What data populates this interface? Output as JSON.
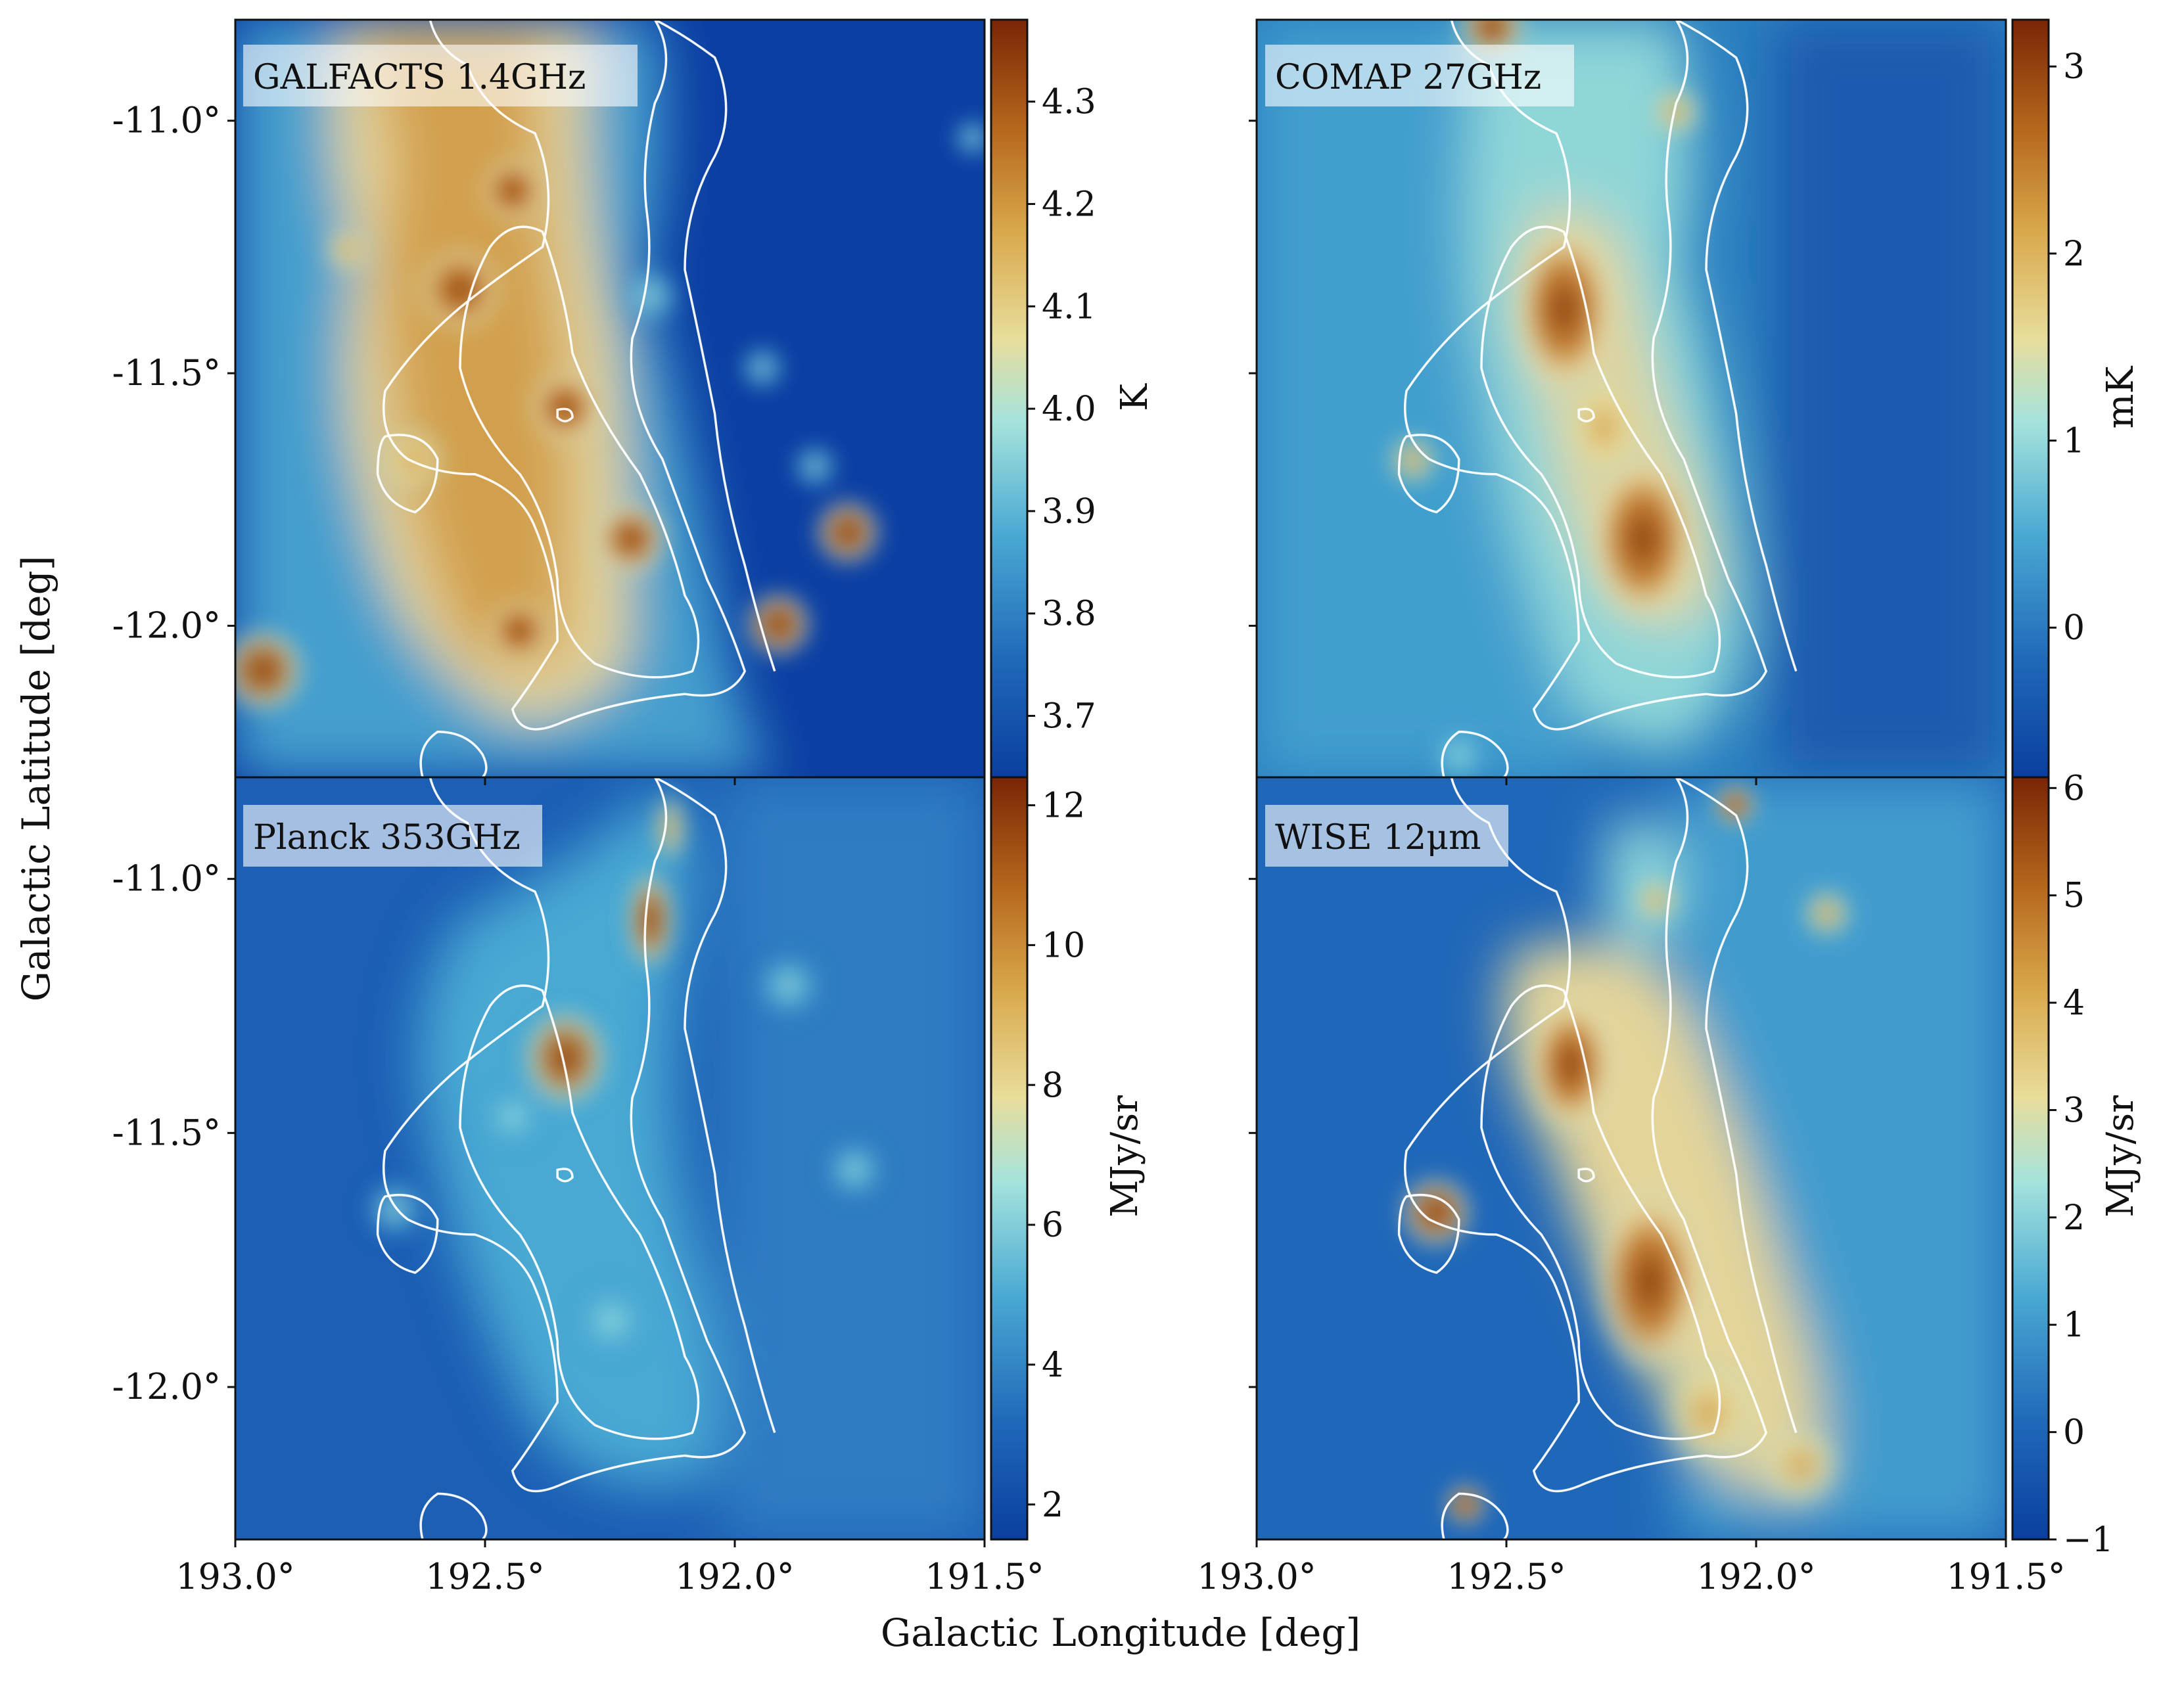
{
  "figure": {
    "xlabel": "Galactic Longitude  [deg]",
    "ylabel": "Galactic Latitude  [deg]"
  },
  "chart_data": [
    {
      "type": "heatmap",
      "title": "GALFACTS 1.4GHz",
      "colorbar_label": "K",
      "colorbar_range": [
        3.64,
        4.38
      ],
      "colorbar_ticks": [
        "3.7",
        "3.8",
        "3.9",
        "4.0",
        "4.1",
        "4.2",
        "4.3"
      ],
      "colorbar_tick_values": [
        3.7,
        3.8,
        3.9,
        4.0,
        4.1,
        4.2,
        4.3
      ],
      "x_ticks": [
        "193.0°",
        "192.5°",
        "192.0°",
        "191.5°"
      ],
      "y_ticks": [
        "-11.0°",
        "-11.5°",
        "-12.0°"
      ],
      "x_range": [
        193.0,
        191.5
      ],
      "y_range": [
        -12.3,
        -10.8
      ]
    },
    {
      "type": "heatmap",
      "title": "COMAP 27GHz",
      "colorbar_label": "mK",
      "colorbar_range": [
        -0.8,
        3.25
      ],
      "colorbar_ticks": [
        "0",
        "1",
        "2",
        "3"
      ],
      "colorbar_tick_values": [
        0,
        1,
        2,
        3
      ],
      "x_ticks": [
        "193.0°",
        "192.5°",
        "192.0°",
        "191.5°"
      ],
      "y_ticks": [],
      "x_range": [
        193.0,
        191.5
      ],
      "y_range": [
        -12.3,
        -10.8
      ]
    },
    {
      "type": "heatmap",
      "title": "Planck 353GHz",
      "colorbar_label": "MJy/sr",
      "colorbar_range": [
        1.5,
        12.4
      ],
      "colorbar_ticks": [
        "2",
        "4",
        "6",
        "8",
        "10",
        "12"
      ],
      "colorbar_tick_values": [
        2,
        4,
        6,
        8,
        10,
        12
      ],
      "x_ticks": [
        "193.0°",
        "192.5°",
        "192.0°",
        "191.5°"
      ],
      "y_ticks": [
        "-11.0°",
        "-11.5°",
        "-12.0°"
      ],
      "x_range": [
        193.0,
        191.5
      ],
      "y_range": [
        -12.3,
        -10.8
      ]
    },
    {
      "type": "heatmap",
      "title": "WISE 12μm",
      "colorbar_label": "MJy/sr",
      "colorbar_range": [
        -1,
        6.1
      ],
      "colorbar_ticks": [
        "−1",
        "0",
        "1",
        "2",
        "3",
        "4",
        "5",
        "6"
      ],
      "colorbar_tick_values": [
        -1,
        0,
        1,
        2,
        3,
        4,
        5,
        6
      ],
      "x_ticks": [
        "193.0°",
        "192.5°",
        "192.0°",
        "191.5°"
      ],
      "y_ticks": [],
      "x_range": [
        193.0,
        191.5
      ],
      "y_range": [
        -12.3,
        -10.8
      ]
    }
  ]
}
